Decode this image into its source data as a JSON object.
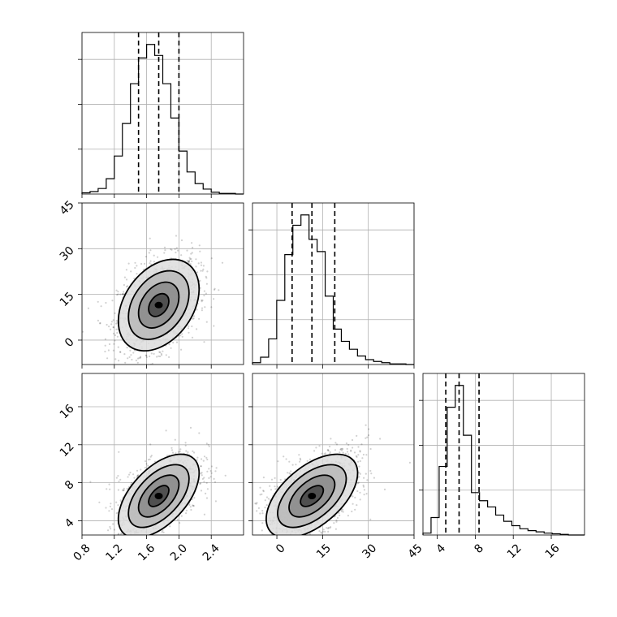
{
  "chart_data": {
    "type": "corner",
    "title": "",
    "grid": true,
    "quantiles": [
      0.16,
      0.5,
      0.84
    ],
    "parameters": [
      {
        "index": 0,
        "label": "",
        "range": [
          0.8,
          2.8
        ],
        "ticks": [
          0.8,
          1.2,
          1.6,
          2.0,
          2.4
        ],
        "tick_labels": [
          "0.8",
          "1.2",
          "1.6",
          "2.0",
          "2.4"
        ],
        "quantile_values": [
          1.5,
          1.75,
          2.0
        ],
        "histogram": {
          "bin_edges": [
            0.8,
            0.9,
            1.0,
            1.1,
            1.2,
            1.3,
            1.4,
            1.5,
            1.6,
            1.7,
            1.8,
            1.9,
            2.0,
            2.1,
            2.2,
            2.3,
            2.4,
            2.5,
            2.6,
            2.7,
            2.8
          ],
          "counts": [
            2,
            4,
            9,
            25,
            62,
            115,
            180,
            222,
            244,
            226,
            180,
            124,
            70,
            36,
            17,
            8,
            3,
            1,
            1,
            0
          ]
        }
      },
      {
        "index": 1,
        "label": "",
        "range": [
          -8,
          45
        ],
        "ticks": [
          0,
          15,
          30,
          45
        ],
        "tick_labels": [
          "0",
          "15",
          "30",
          "45"
        ],
        "quantile_values": [
          5,
          11.5,
          19
        ],
        "histogram": {
          "bin_edges": [
            -8,
            -5.35,
            -2.7,
            -0.05,
            2.6,
            5.25,
            7.9,
            10.55,
            13.2,
            15.85,
            18.5,
            21.15,
            23.8,
            26.45,
            29.1,
            31.75,
            34.4,
            37.05,
            39.7,
            42.35,
            45
          ],
          "counts": [
            3,
            12,
            42,
            105,
            180,
            228,
            245,
            205,
            185,
            112,
            58,
            38,
            25,
            14,
            8,
            5,
            3,
            1,
            1,
            0
          ]
        }
      },
      {
        "index": 2,
        "label": "",
        "range": [
          2.5,
          19.5
        ],
        "ticks": [
          4,
          8,
          12,
          16
        ],
        "tick_labels": [
          "4",
          "8",
          "12",
          "16"
        ],
        "quantile_values": [
          4.9,
          6.3,
          8.4
        ],
        "histogram": {
          "bin_edges": [
            2.5,
            3.35,
            4.2,
            5.05,
            5.9,
            6.75,
            7.6,
            8.45,
            9.3,
            10.15,
            11.0,
            11.85,
            12.7,
            13.55,
            14.4,
            15.25,
            16.1,
            16.95,
            17.8,
            18.65,
            19.5
          ],
          "counts": [
            3,
            28,
            110,
            205,
            240,
            160,
            68,
            55,
            45,
            32,
            22,
            15,
            10,
            7,
            5,
            3,
            2,
            1,
            0,
            0
          ]
        }
      }
    ],
    "pairs": [
      {
        "x_param": 0,
        "y_param": 1,
        "correlation": 0.35,
        "mean": [
          1.75,
          11.5
        ],
        "std": [
          0.25,
          7.5
        ],
        "n_points": 1500
      },
      {
        "x_param": 0,
        "y_param": 2,
        "correlation": 0.55,
        "mean": [
          1.75,
          6.6
        ],
        "std": [
          0.25,
          2.2
        ],
        "n_points": 1500
      },
      {
        "x_param": 1,
        "y_param": 2,
        "correlation": 0.55,
        "mean": [
          11.5,
          6.6
        ],
        "std": [
          7.5,
          2.2
        ],
        "n_points": 1500
      }
    ],
    "contour_levels_sigma": [
      0.5,
      1.0,
      1.5,
      2.0
    ]
  }
}
